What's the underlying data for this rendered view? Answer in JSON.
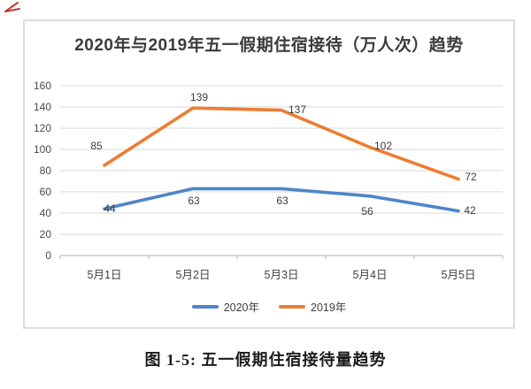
{
  "annotation": {
    "corner_mark_color": "#c23a2e",
    "corner_mark_meaning": "red check/angle mark"
  },
  "chart": {
    "caption": "图 1-5: 五一假期住宿接待量趋势",
    "colors": {
      "grid": "#d9d9d9",
      "axis": "#bfbfbf",
      "text": "#3c3c3c",
      "frame_border": "#dcdcdc",
      "background": "#ffffff"
    }
  },
  "chart_data": {
    "type": "line",
    "title": "2020年与2019年五一假期住宿接待（万人次）趋势",
    "categories": [
      "5月1日",
      "5月2日",
      "5月3日",
      "5月4日",
      "5月5日"
    ],
    "series": [
      {
        "name": "2020年",
        "color": "#4e86c8",
        "values": [
          44,
          63,
          63,
          56,
          42
        ]
      },
      {
        "name": "2019年",
        "color": "#ed7d31",
        "values": [
          85,
          139,
          137,
          102,
          72
        ]
      }
    ],
    "ylabel": "",
    "xlabel": "",
    "ylim": [
      0,
      160
    ],
    "ytick_step": 20,
    "grid": true,
    "data_labels": true,
    "legend_position": "bottom"
  }
}
